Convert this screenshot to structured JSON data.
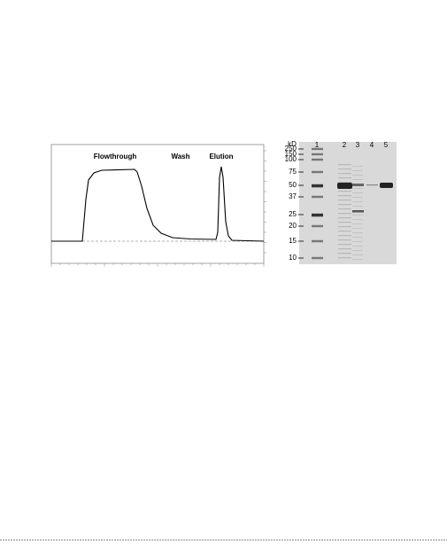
{
  "chromatogram": {
    "phases": [
      "Flowthrough",
      "Wash",
      "Elution"
    ]
  },
  "gel": {
    "unit": "kD",
    "lanes": [
      "1",
      "2",
      "3",
      "4",
      "5"
    ],
    "markers": [
      "250",
      "150",
      "100",
      "75",
      "50",
      "37",
      "25",
      "20",
      "15",
      "10"
    ]
  }
}
